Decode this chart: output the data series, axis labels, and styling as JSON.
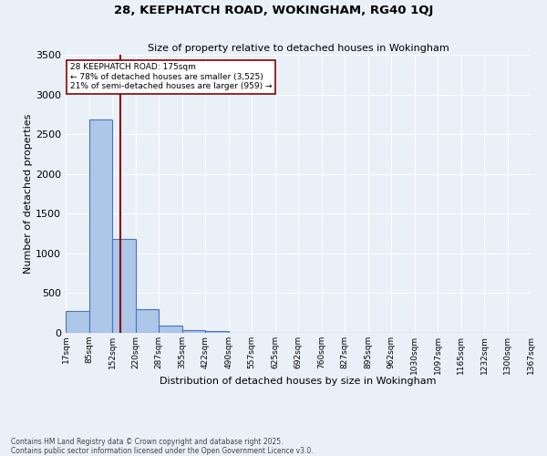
{
  "title": "28, KEEPHATCH ROAD, WOKINGHAM, RG40 1QJ",
  "subtitle": "Size of property relative to detached houses in Wokingham",
  "xlabel": "Distribution of detached houses by size in Wokingham",
  "ylabel": "Number of detached properties",
  "bin_labels": [
    "17sqm",
    "85sqm",
    "152sqm",
    "220sqm",
    "287sqm",
    "355sqm",
    "422sqm",
    "490sqm",
    "557sqm",
    "625sqm",
    "692sqm",
    "760sqm",
    "827sqm",
    "895sqm",
    "962sqm",
    "1030sqm",
    "1097sqm",
    "1165sqm",
    "1232sqm",
    "1300sqm",
    "1367sqm"
  ],
  "bar_heights": [
    270,
    2680,
    1185,
    295,
    90,
    35,
    25,
    0,
    0,
    0,
    0,
    0,
    0,
    0,
    0,
    0,
    0,
    0,
    0,
    0
  ],
  "bar_color": "#aec6e8",
  "bar_edge_color": "#4472c4",
  "background_color": "#eaf0f8",
  "grid_color": "#ffffff",
  "vline_x": 175,
  "vline_color": "#8b0000",
  "annotation_text": "28 KEEPHATCH ROAD: 175sqm\n← 78% of detached houses are smaller (3,525)\n21% of semi-detached houses are larger (959) →",
  "annotation_box_color": "#ffffff",
  "annotation_box_edge": "#8b0000",
  "ylim": [
    0,
    3500
  ],
  "yticks": [
    0,
    500,
    1000,
    1500,
    2000,
    2500,
    3000,
    3500
  ],
  "footer_line1": "Contains HM Land Registry data © Crown copyright and database right 2025.",
  "footer_line2": "Contains public sector information licensed under the Open Government Licence v3.0.",
  "bin_edges_sqm": [
    17,
    85,
    152,
    220,
    287,
    355,
    422,
    490,
    557,
    625,
    692,
    760,
    827,
    895,
    962,
    1030,
    1097,
    1165,
    1232,
    1300,
    1367
  ]
}
